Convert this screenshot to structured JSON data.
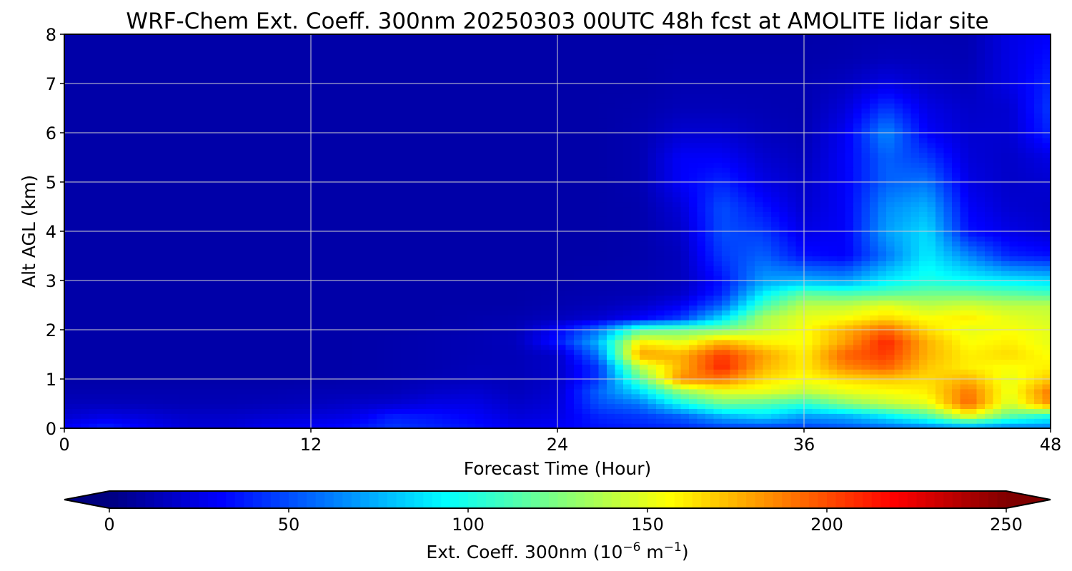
{
  "chart_data": {
    "type": "heatmap",
    "title": "WRF-Chem Ext. Coeff. 300nm  20250303 00UTC 48h fcst at AMOLITE lidar site",
    "xlabel": "Forecast Time (Hour)",
    "ylabel": "Alt AGL (km)",
    "xlim": [
      0,
      48
    ],
    "ylim": [
      0,
      8
    ],
    "xticks": [
      "0",
      "12",
      "24",
      "36",
      "48"
    ],
    "yticks": [
      "0",
      "1",
      "2",
      "3",
      "4",
      "5",
      "6",
      "7",
      "8"
    ],
    "grid": true,
    "colormap": "jet",
    "colorbar": {
      "orientation": "horizontal",
      "extend": "both",
      "range": [
        0,
        250
      ],
      "ticks": [
        "0",
        "50",
        "100",
        "150",
        "200",
        "250"
      ],
      "label_main": "Ext. Coeff. 300nm  (10",
      "label_exp1": "−6",
      "label_mid": " m",
      "label_exp2": "−1",
      "label_end": ")"
    },
    "x": [
      0,
      2,
      4,
      6,
      8,
      10,
      12,
      14,
      16,
      18,
      20,
      22,
      24,
      26,
      28,
      30,
      32,
      34,
      36,
      38,
      40,
      42,
      44,
      46,
      48
    ],
    "y": [
      0,
      0.25,
      0.5,
      0.75,
      1.0,
      1.25,
      1.5,
      1.75,
      2.0,
      2.25,
      2.5,
      2.75,
      3.0,
      3.5,
      4.0,
      4.5,
      5.0,
      5.5,
      6.0,
      6.5,
      7.0,
      7.5,
      8.0
    ],
    "z": [
      [
        30,
        40,
        30,
        22,
        22,
        28,
        30,
        35,
        45,
        40,
        35,
        28,
        30,
        35,
        38,
        40,
        45,
        45,
        45,
        50,
        55,
        60,
        65,
        60,
        60
      ],
      [
        20,
        25,
        22,
        18,
        18,
        20,
        22,
        25,
        38,
        35,
        30,
        22,
        25,
        40,
        45,
        55,
        75,
        85,
        70,
        75,
        90,
        110,
        150,
        115,
        100
      ],
      [
        15,
        15,
        14,
        13,
        13,
        14,
        15,
        18,
        20,
        25,
        25,
        18,
        22,
        50,
        60,
        95,
        120,
        115,
        105,
        125,
        140,
        150,
        195,
        145,
        185
      ],
      [
        12,
        12,
        12,
        12,
        12,
        12,
        13,
        13,
        14,
        18,
        20,
        15,
        20,
        55,
        85,
        130,
        150,
        150,
        140,
        150,
        155,
        160,
        190,
        150,
        190
      ],
      [
        10,
        10,
        10,
        10,
        10,
        10,
        10,
        11,
        12,
        14,
        15,
        14,
        18,
        45,
        115,
        185,
        190,
        165,
        155,
        165,
        170,
        165,
        175,
        150,
        170
      ],
      [
        10,
        10,
        10,
        10,
        10,
        10,
        10,
        10,
        11,
        12,
        14,
        14,
        18,
        45,
        140,
        175,
        210,
        175,
        160,
        185,
        195,
        170,
        160,
        155,
        160
      ],
      [
        10,
        10,
        10,
        10,
        10,
        10,
        10,
        10,
        11,
        12,
        13,
        14,
        18,
        60,
        180,
        175,
        205,
        180,
        160,
        195,
        205,
        175,
        160,
        165,
        155
      ],
      [
        10,
        10,
        10,
        10,
        10,
        10,
        10,
        10,
        11,
        12,
        13,
        15,
        35,
        75,
        160,
        150,
        175,
        160,
        155,
        180,
        210,
        175,
        155,
        160,
        150
      ],
      [
        10,
        10,
        10,
        10,
        10,
        10,
        10,
        10,
        10,
        11,
        12,
        14,
        30,
        60,
        115,
        120,
        125,
        140,
        155,
        175,
        195,
        165,
        150,
        155,
        150
      ],
      [
        10,
        10,
        10,
        10,
        10,
        10,
        10,
        10,
        10,
        10,
        11,
        12,
        15,
        20,
        30,
        45,
        85,
        135,
        150,
        155,
        165,
        155,
        160,
        150,
        145
      ],
      [
        10,
        10,
        10,
        10,
        10,
        10,
        10,
        10,
        10,
        10,
        10,
        10,
        12,
        14,
        18,
        28,
        55,
        110,
        140,
        140,
        150,
        140,
        145,
        140,
        140
      ],
      [
        10,
        10,
        10,
        10,
        10,
        10,
        10,
        10,
        10,
        10,
        10,
        10,
        11,
        12,
        13,
        18,
        40,
        90,
        115,
        110,
        115,
        120,
        120,
        115,
        110
      ],
      [
        10,
        10,
        10,
        10,
        10,
        10,
        10,
        10,
        10,
        10,
        10,
        10,
        10,
        11,
        12,
        15,
        35,
        70,
        75,
        70,
        90,
        100,
        95,
        90,
        85
      ],
      [
        10,
        10,
        10,
        10,
        10,
        10,
        10,
        10,
        10,
        10,
        10,
        10,
        10,
        10,
        11,
        15,
        45,
        55,
        35,
        30,
        60,
        90,
        65,
        40,
        35
      ],
      [
        10,
        10,
        10,
        10,
        10,
        10,
        10,
        10,
        10,
        10,
        10,
        10,
        10,
        10,
        11,
        18,
        50,
        45,
        25,
        30,
        70,
        85,
        35,
        25,
        20
      ],
      [
        10,
        10,
        10,
        10,
        10,
        10,
        10,
        10,
        10,
        10,
        10,
        10,
        10,
        10,
        11,
        22,
        50,
        35,
        20,
        30,
        65,
        75,
        30,
        20,
        18
      ],
      [
        10,
        10,
        10,
        10,
        10,
        10,
        10,
        10,
        10,
        10,
        10,
        10,
        10,
        10,
        12,
        30,
        40,
        25,
        18,
        30,
        55,
        60,
        25,
        18,
        20
      ],
      [
        10,
        10,
        10,
        10,
        10,
        10,
        10,
        10,
        10,
        10,
        10,
        10,
        10,
        10,
        12,
        30,
        30,
        20,
        15,
        30,
        55,
        45,
        22,
        18,
        25
      ],
      [
        10,
        10,
        10,
        10,
        10,
        10,
        10,
        10,
        10,
        10,
        10,
        10,
        10,
        10,
        12,
        20,
        20,
        15,
        13,
        28,
        65,
        30,
        20,
        20,
        40
      ],
      [
        10,
        10,
        10,
        10,
        10,
        10,
        10,
        10,
        10,
        10,
        10,
        10,
        10,
        10,
        11,
        14,
        14,
        13,
        12,
        22,
        45,
        25,
        18,
        20,
        45
      ],
      [
        10,
        10,
        10,
        10,
        10,
        10,
        10,
        10,
        10,
        10,
        10,
        10,
        10,
        10,
        10,
        12,
        12,
        12,
        12,
        16,
        25,
        18,
        15,
        25,
        40
      ],
      [
        10,
        10,
        10,
        10,
        10,
        10,
        10,
        10,
        10,
        10,
        10,
        10,
        10,
        10,
        10,
        11,
        11,
        11,
        11,
        12,
        15,
        14,
        13,
        25,
        35
      ],
      [
        10,
        10,
        10,
        10,
        10,
        10,
        10,
        10,
        10,
        10,
        10,
        10,
        10,
        10,
        10,
        10,
        10,
        10,
        10,
        11,
        12,
        12,
        12,
        25,
        30
      ]
    ]
  }
}
